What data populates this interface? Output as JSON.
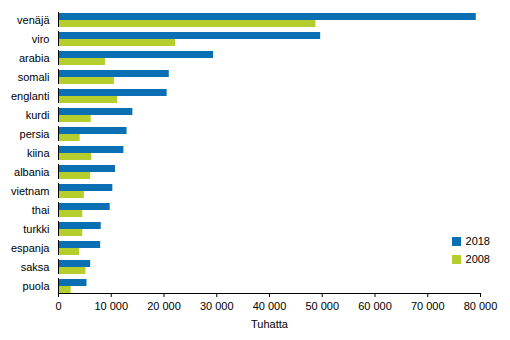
{
  "chart_data": {
    "type": "bar",
    "orientation": "horizontal",
    "xlabel": "Tuhatta",
    "categories": [
      "venäjä",
      "viro",
      "arabia",
      "somali",
      "englanti",
      "kurdi",
      "persia",
      "kiina",
      "albania",
      "vietnam",
      "thai",
      "turkki",
      "espanja",
      "saksa",
      "puola"
    ],
    "series": [
      {
        "name": "2018",
        "color": "#0a6fb3",
        "values": [
          79200,
          49700,
          29400,
          21000,
          20600,
          14100,
          13000,
          12400,
          10800,
          10300,
          9800,
          8100,
          8000,
          6100,
          5400
        ]
      },
      {
        "name": "2008",
        "color": "#b5ce2d",
        "values": [
          48800,
          22200,
          8900,
          10600,
          11200,
          6200,
          4100,
          6300,
          6100,
          4900,
          4600,
          4600,
          4000,
          5200,
          2400
        ]
      }
    ],
    "xlim": [
      0,
      80000
    ],
    "xticks": [
      0,
      {
        "value": 10000,
        "label": "10 000"
      },
      {
        "value": 20000,
        "label": "20 000"
      },
      {
        "value": 30000,
        "label": "30 000"
      },
      {
        "value": 40000,
        "label": "40 000"
      },
      {
        "value": 50000,
        "label": "50 000"
      },
      {
        "value": 60000,
        "label": "60 000"
      },
      {
        "value": 70000,
        "label": "70 000"
      },
      {
        "value": 80000,
        "label": "80 000"
      }
    ],
    "grid": false,
    "legend": "right"
  }
}
